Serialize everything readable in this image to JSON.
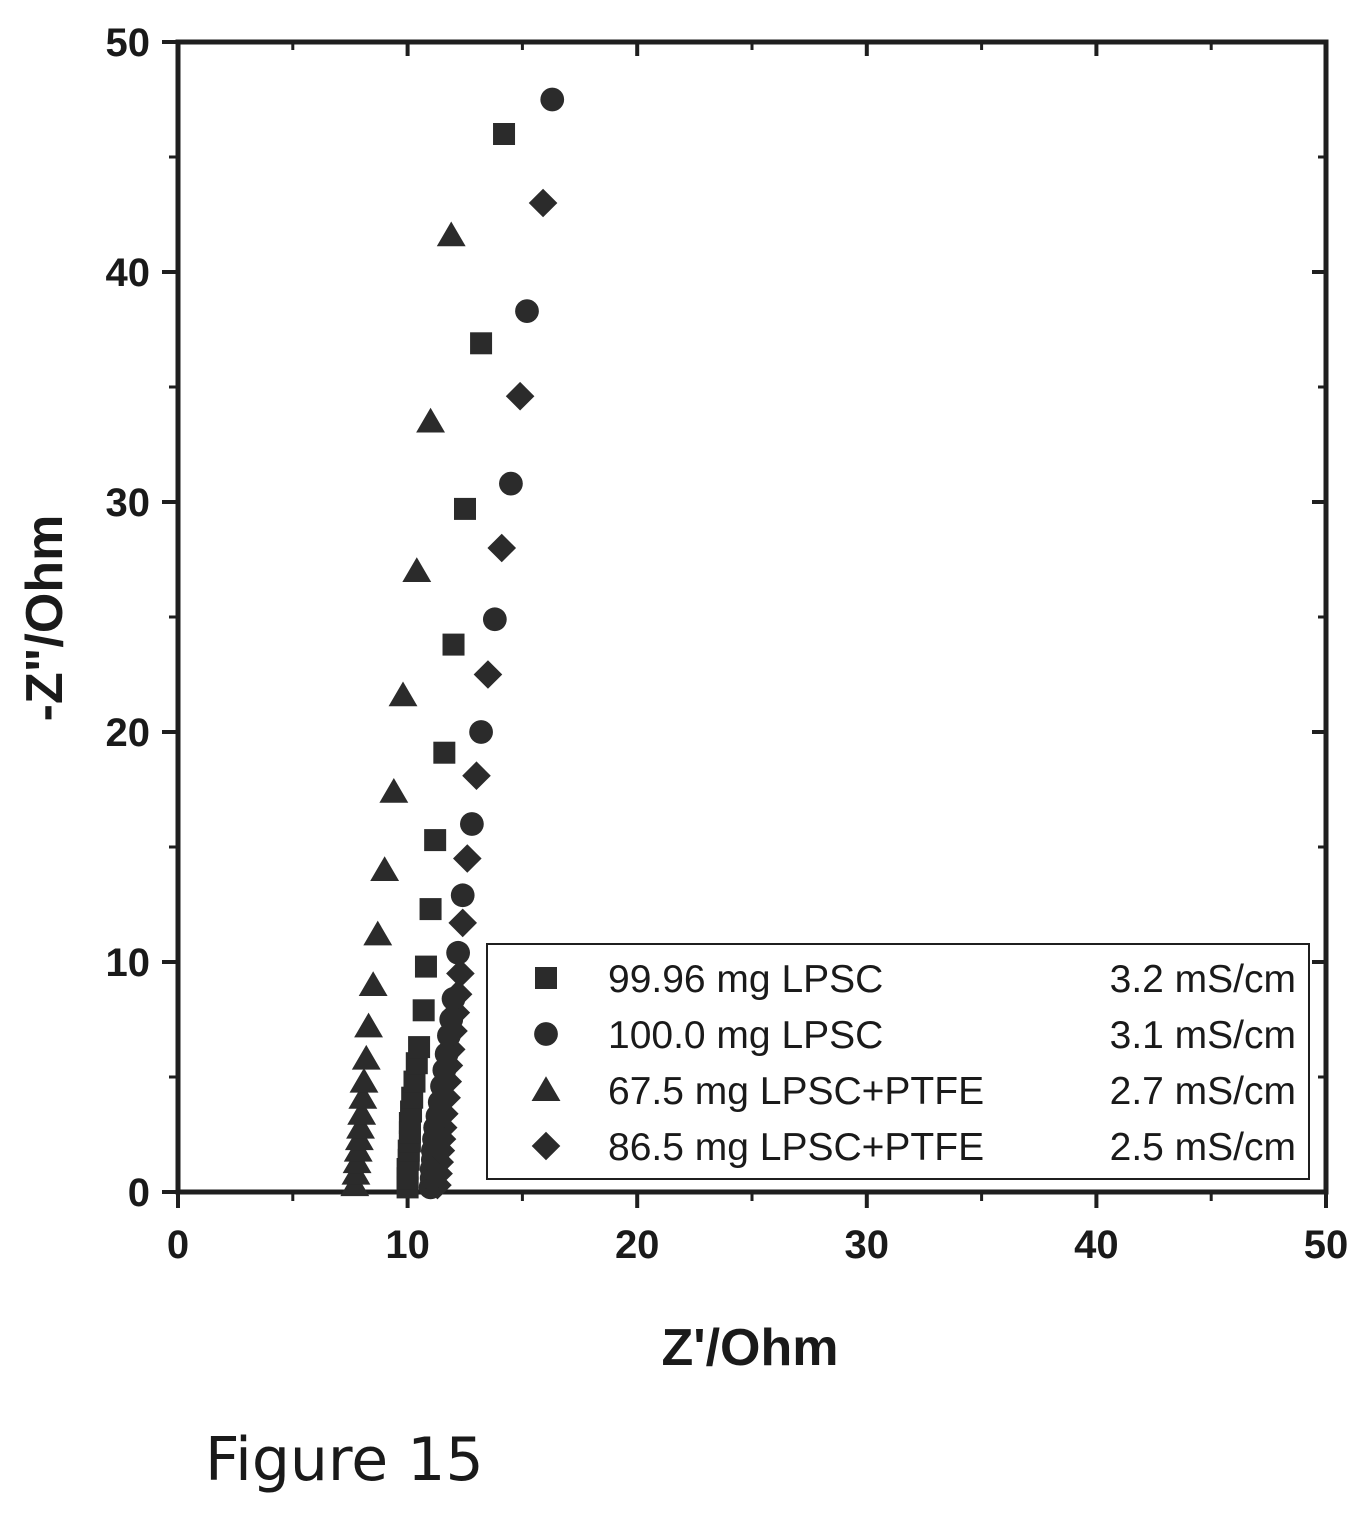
{
  "chart_data": {
    "type": "scatter",
    "caption": "Figure 15",
    "xlabel": "Z'/Ohm",
    "ylabel": "-Z\"/Ohm",
    "xlim": [
      0,
      50
    ],
    "ylim": [
      0,
      50
    ],
    "xticks": [
      "0",
      "10",
      "20",
      "30",
      "40",
      "50"
    ],
    "yticks": [
      "0",
      "10",
      "20",
      "30",
      "40",
      "50"
    ],
    "grid": false,
    "legend_position": "bottom-right",
    "series": [
      {
        "name": "99.96 mg LPSC",
        "conductivity": "3.2 mS/cm",
        "marker": "square",
        "color": "#2b2b2b",
        "points": [
          [
            10.0,
            0.2
          ],
          [
            10.0,
            0.6
          ],
          [
            10.0,
            1.0
          ],
          [
            10.05,
            1.4
          ],
          [
            10.05,
            1.8
          ],
          [
            10.1,
            2.2
          ],
          [
            10.1,
            2.6
          ],
          [
            10.1,
            3.0
          ],
          [
            10.15,
            3.5
          ],
          [
            10.2,
            4.1
          ],
          [
            10.3,
            4.8
          ],
          [
            10.4,
            5.6
          ],
          [
            10.5,
            6.3
          ],
          [
            10.7,
            7.9
          ],
          [
            10.8,
            9.8
          ],
          [
            11.0,
            12.3
          ],
          [
            11.2,
            15.3
          ],
          [
            11.6,
            19.1
          ],
          [
            12.0,
            23.8
          ],
          [
            12.5,
            29.7
          ],
          [
            13.2,
            36.9
          ],
          [
            14.2,
            46.0
          ]
        ]
      },
      {
        "name": "100.0 mg LPSC",
        "conductivity": "3.1 mS/cm",
        "marker": "circle",
        "color": "#2b2b2b",
        "points": [
          [
            11.0,
            0.2
          ],
          [
            11.05,
            0.6
          ],
          [
            11.05,
            1.0
          ],
          [
            11.1,
            1.4
          ],
          [
            11.1,
            1.8
          ],
          [
            11.15,
            2.3
          ],
          [
            11.2,
            2.8
          ],
          [
            11.3,
            3.3
          ],
          [
            11.4,
            3.9
          ],
          [
            11.5,
            4.6
          ],
          [
            11.6,
            5.3
          ],
          [
            11.7,
            6.0
          ],
          [
            11.8,
            6.8
          ],
          [
            11.9,
            7.5
          ],
          [
            12.0,
            8.4
          ],
          [
            12.2,
            10.4
          ],
          [
            12.4,
            12.9
          ],
          [
            12.8,
            16.0
          ],
          [
            13.2,
            20.0
          ],
          [
            13.8,
            24.9
          ],
          [
            14.5,
            30.8
          ],
          [
            15.2,
            38.3
          ],
          [
            16.3,
            47.5
          ]
        ]
      },
      {
        "name": "67.5 mg LPSC+PTFE",
        "conductivity": "2.7 mS/cm",
        "marker": "triangle",
        "color": "#2b2b2b",
        "points": [
          [
            7.7,
            0.3
          ],
          [
            7.75,
            0.8
          ],
          [
            7.8,
            1.3
          ],
          [
            7.85,
            1.8
          ],
          [
            7.9,
            2.3
          ],
          [
            7.95,
            2.8
          ],
          [
            8.0,
            3.4
          ],
          [
            8.05,
            4.1
          ],
          [
            8.1,
            4.8
          ],
          [
            8.2,
            5.8
          ],
          [
            8.3,
            7.2
          ],
          [
            8.5,
            9.0
          ],
          [
            8.7,
            11.2
          ],
          [
            9.0,
            14.0
          ],
          [
            9.4,
            17.4
          ],
          [
            9.8,
            21.6
          ],
          [
            10.4,
            27.0
          ],
          [
            11.0,
            33.5
          ],
          [
            11.9,
            41.6
          ]
        ]
      },
      {
        "name": "86.5 mg LPSC+PTFE",
        "conductivity": "2.5 mS/cm",
        "marker": "diamond",
        "color": "#2b2b2b",
        "points": [
          [
            11.3,
            0.3
          ],
          [
            11.35,
            0.8
          ],
          [
            11.4,
            1.3
          ],
          [
            11.45,
            1.8
          ],
          [
            11.5,
            2.3
          ],
          [
            11.55,
            2.8
          ],
          [
            11.6,
            3.4
          ],
          [
            11.7,
            4.1
          ],
          [
            11.75,
            4.8
          ],
          [
            11.8,
            5.5
          ],
          [
            11.9,
            6.2
          ],
          [
            12.0,
            7.0
          ],
          [
            12.1,
            7.8
          ],
          [
            12.2,
            8.6
          ],
          [
            12.3,
            9.5
          ],
          [
            12.4,
            11.7
          ],
          [
            12.6,
            14.5
          ],
          [
            13.0,
            18.1
          ],
          [
            13.5,
            22.5
          ],
          [
            14.1,
            28.0
          ],
          [
            14.9,
            34.6
          ],
          [
            15.9,
            43.0
          ]
        ]
      }
    ]
  }
}
